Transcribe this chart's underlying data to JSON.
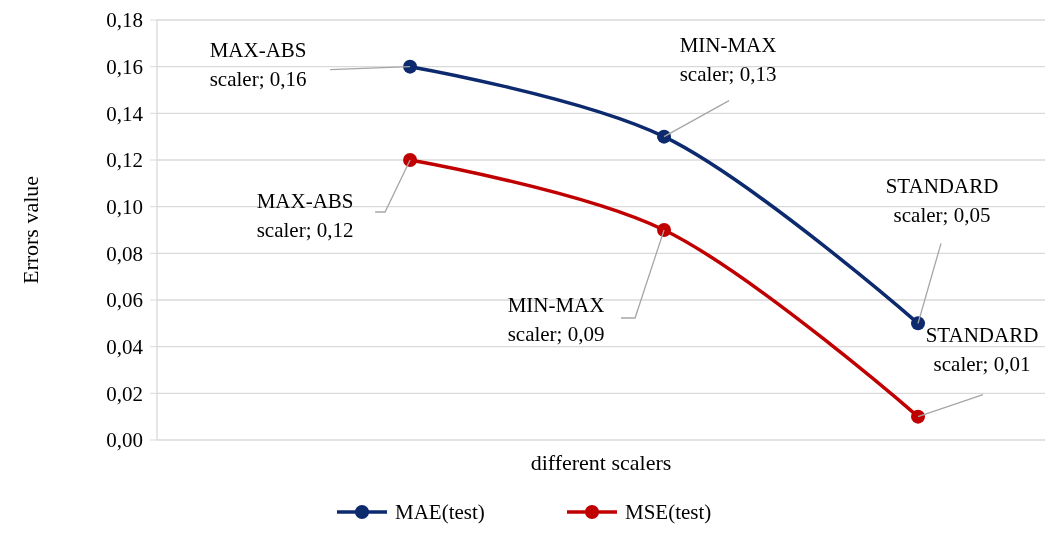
{
  "chart_data": {
    "type": "line",
    "xlabel": "different scalers",
    "ylabel": "Errors value",
    "categories": [
      null,
      null,
      null
    ],
    "series": [
      {
        "name": "MAE(test)",
        "color": "#0d2a6e",
        "values": [
          0.16,
          0.13,
          0.05
        ],
        "value_labels": [
          "MAX-ABS scaler; 0,16",
          "MIN-MAX scaler; 0,13",
          "STANDARD scaler; 0,05"
        ]
      },
      {
        "name": "MSE(test)",
        "color": "#c00000",
        "values": [
          0.12,
          0.09,
          0.01
        ],
        "value_labels": [
          "MAX-ABS scaler; 0,12",
          "MIN-MAX scaler; 0,09",
          "STANDARD scaler; 0,01"
        ]
      }
    ],
    "ylim": [
      0,
      0.18
    ],
    "yticks": [
      {
        "value": 0,
        "label": "0,00"
      },
      {
        "value": 0.02,
        "label": "0,02"
      },
      {
        "value": 0.04,
        "label": "0,04"
      },
      {
        "value": 0.06,
        "label": "0,06"
      },
      {
        "value": 0.08,
        "label": "0,08"
      },
      {
        "value": 0.1,
        "label": "0,10"
      },
      {
        "value": 0.12,
        "label": "0,12"
      },
      {
        "value": 0.14,
        "label": "0,14"
      },
      {
        "value": 0.16,
        "label": "0,16"
      },
      {
        "value": 0.18,
        "label": "0,18"
      }
    ],
    "grid": "y",
    "legend": "bottom",
    "marker": "circle",
    "line_style": "solid"
  }
}
